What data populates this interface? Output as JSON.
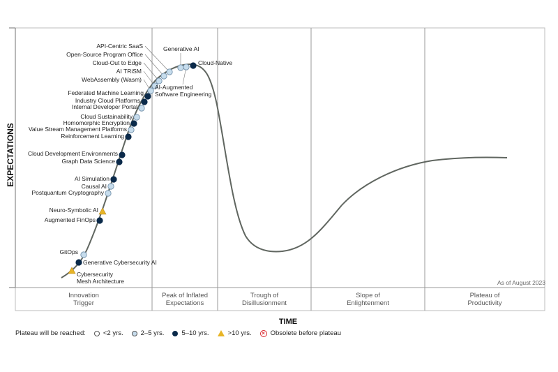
{
  "chart_data": {
    "type": "hype-cycle",
    "ylabel": "EXPECTATIONS",
    "xlabel": "TIME",
    "as_of": "As of August 2023",
    "phases": [
      "Innovation\nTrigger",
      "Peak of Inflated\nExpectations",
      "Trough of\nDisillusionment",
      "Slope of\nEnlightenment",
      "Plateau of\nProductivity"
    ],
    "legend": {
      "title": "Plateau will be reached:",
      "items": [
        {
          "label": "<2 yrs.",
          "type": "under2"
        },
        {
          "label": "2–5 yrs.",
          "type": "2to5"
        },
        {
          "label": "5–10 yrs.",
          "type": "5to10"
        },
        {
          "label": ">10 yrs.",
          "type": "over10"
        },
        {
          "label": "Obsolete before plateau",
          "type": "obsolete"
        }
      ]
    },
    "colors": {
      "under2": "#ffffff",
      "2to5": "#c6dcec",
      "5to10": "#0b2a4a",
      "over10": "#e8b527",
      "obsolete": "#d9262c",
      "curve": "#606660",
      "divider": "#999999"
    },
    "technologies": [
      {
        "label": "Cybersecurity\nMesh Architecture",
        "type": "over10"
      },
      {
        "label": "Generative Cybersecurity AI",
        "type": "5to10"
      },
      {
        "label": "GitOps",
        "type": "2to5"
      },
      {
        "label": "Augmented FinOps",
        "type": "5to10"
      },
      {
        "label": "Neuro-Symbolic AI",
        "type": "over10"
      },
      {
        "label": "Postquantum Cryptography",
        "type": "2to5"
      },
      {
        "label": "Causal AI",
        "type": "2to5"
      },
      {
        "label": "AI Simulation",
        "type": "5to10"
      },
      {
        "label": "Graph Data Science",
        "type": "5to10"
      },
      {
        "label": "Cloud Development Environments",
        "type": "5to10"
      },
      {
        "label": "Reinforcement Learning",
        "type": "5to10"
      },
      {
        "label": "Value Stream Management Platforms",
        "type": "2to5"
      },
      {
        "label": "Homomorphic Encryption",
        "type": "5to10"
      },
      {
        "label": "Cloud Sustainability",
        "type": "2to5"
      },
      {
        "label": "Internal Developer Portal",
        "type": "2to5"
      },
      {
        "label": "Industry Cloud Platforms",
        "type": "5to10"
      },
      {
        "label": "Federated Machine Learning",
        "type": "5to10"
      },
      {
        "label": "WebAssembly (Wasm)",
        "type": "2to5"
      },
      {
        "label": "AI TRiSM",
        "type": "2to5"
      },
      {
        "label": "Cloud-Out to Edge",
        "type": "2to5"
      },
      {
        "label": "Open-Source Program Office",
        "type": "2to5"
      },
      {
        "label": "API-Centric SaaS",
        "type": "2to5"
      },
      {
        "label": "Generative AI",
        "type": "2to5"
      },
      {
        "label": "AI-Augmented\nSoftware Engineering",
        "type": "2to5"
      },
      {
        "label": "Cloud-Native",
        "type": "5to10"
      }
    ]
  }
}
